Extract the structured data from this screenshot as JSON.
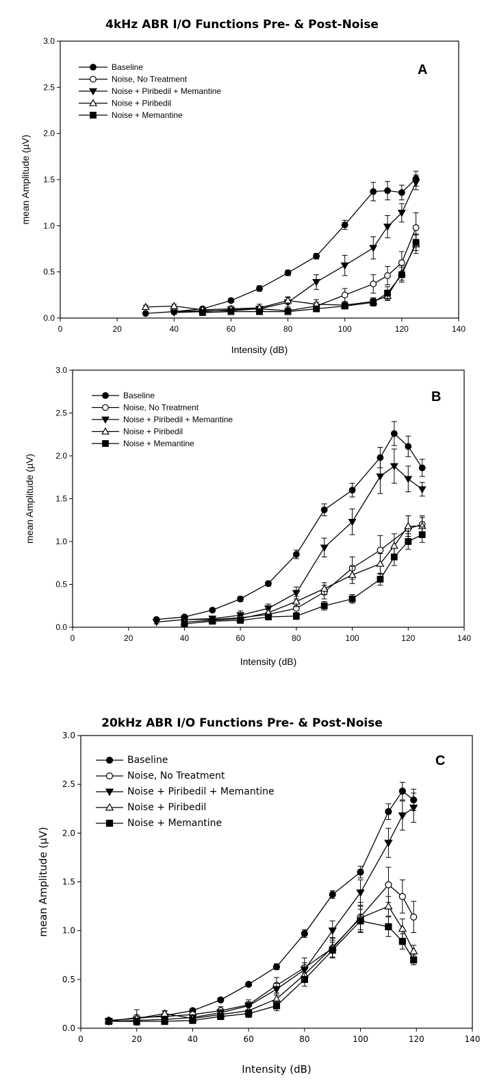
{
  "header": {
    "title_top": "4kHz ABR I/O Functions Pre- & Post-Noise",
    "title_c": "20kHz ABR I/O Functions Pre- & Post-Noise"
  },
  "chart_data": [
    {
      "type": "line",
      "panel": "A",
      "xlabel": "Intensity (dB)",
      "ylabel": "mean Amplitude (µV)",
      "xlim": [
        0,
        140
      ],
      "ylim": [
        0,
        3.0
      ],
      "xticks": [
        0,
        20,
        40,
        60,
        80,
        100,
        120,
        140
      ],
      "yticks": [
        0.0,
        0.5,
        1.0,
        1.5,
        2.0,
        2.5,
        3.0
      ],
      "legend": "top-left",
      "series": [
        {
          "name": "Baseline",
          "marker": "circle-filled",
          "x": [
            30,
            40,
            50,
            60,
            70,
            80,
            90,
            100,
            110,
            115,
            120,
            125
          ],
          "y": [
            0.05,
            0.07,
            0.1,
            0.19,
            0.32,
            0.49,
            0.67,
            1.01,
            1.37,
            1.38,
            1.36,
            1.51
          ],
          "err": [
            0.01,
            0.01,
            0.02,
            0.02,
            0.03,
            0.03,
            0.03,
            0.05,
            0.1,
            0.1,
            0.08,
            0.08
          ]
        },
        {
          "name": "Noise, No Treatment",
          "marker": "circle-open",
          "x": [
            40,
            50,
            60,
            70,
            80,
            90,
            100,
            110,
            115,
            120,
            125
          ],
          "y": [
            0.07,
            0.08,
            0.08,
            0.1,
            0.08,
            0.13,
            0.25,
            0.37,
            0.46,
            0.6,
            0.98
          ],
          "err": [
            0.02,
            0.02,
            0.02,
            0.03,
            0.02,
            0.04,
            0.07,
            0.1,
            0.1,
            0.12,
            0.16
          ]
        },
        {
          "name": "Noise + Piribedil + Memantine",
          "marker": "triangle-down-filled",
          "x": [
            40,
            50,
            60,
            70,
            80,
            90,
            100,
            110,
            115,
            120,
            125
          ],
          "y": [
            0.06,
            0.07,
            0.09,
            0.1,
            0.17,
            0.39,
            0.57,
            0.76,
            0.99,
            1.14,
            1.47
          ],
          "err": [
            0.02,
            0.02,
            0.02,
            0.03,
            0.05,
            0.08,
            0.11,
            0.12,
            0.12,
            0.1,
            0.08
          ]
        },
        {
          "name": "Noise + Piribedil",
          "marker": "triangle-up-open",
          "x": [
            30,
            40,
            50,
            60,
            70,
            80,
            90,
            100,
            110,
            115,
            120,
            125
          ],
          "y": [
            0.12,
            0.13,
            0.09,
            0.1,
            0.11,
            0.19,
            0.15,
            0.14,
            0.18,
            0.24,
            0.49,
            0.8
          ],
          "err": [
            0.02,
            0.02,
            0.03,
            0.03,
            0.04,
            0.04,
            0.05,
            0.03,
            0.04,
            0.05,
            0.08,
            0.1
          ]
        },
        {
          "name": "Noise + Memantine",
          "marker": "square-filled",
          "x": [
            50,
            60,
            70,
            80,
            90,
            100,
            110,
            115,
            120,
            125
          ],
          "y": [
            0.06,
            0.07,
            0.07,
            0.07,
            0.1,
            0.13,
            0.17,
            0.27,
            0.47,
            0.82
          ],
          "err": [
            0.02,
            0.02,
            0.02,
            0.02,
            0.03,
            0.02,
            0.04,
            0.07,
            0.08,
            0.09
          ]
        }
      ]
    },
    {
      "type": "line",
      "panel": "B",
      "xlabel": "Intensity (dB)",
      "ylabel": "mean Amplitude (µV)",
      "xlim": [
        0,
        140
      ],
      "ylim": [
        0,
        3.0
      ],
      "xticks": [
        0,
        20,
        40,
        60,
        80,
        100,
        120,
        140
      ],
      "yticks": [
        0.0,
        0.5,
        1.0,
        1.5,
        2.0,
        2.5,
        3.0
      ],
      "legend": "top-left",
      "series": [
        {
          "name": "Baseline",
          "marker": "circle-filled",
          "x": [
            30,
            40,
            50,
            60,
            70,
            80,
            90,
            100,
            110,
            115,
            120,
            125
          ],
          "y": [
            0.09,
            0.12,
            0.2,
            0.33,
            0.51,
            0.85,
            1.37,
            1.6,
            1.98,
            2.26,
            2.11,
            1.86
          ],
          "err": [
            0.02,
            0.02,
            0.02,
            0.03,
            0.03,
            0.05,
            0.07,
            0.08,
            0.12,
            0.14,
            0.12,
            0.1
          ]
        },
        {
          "name": "Noise, No Treatment",
          "marker": "circle-open",
          "x": [
            40,
            50,
            60,
            70,
            80,
            90,
            100,
            110,
            120,
            125
          ],
          "y": [
            0.09,
            0.09,
            0.11,
            0.15,
            0.22,
            0.41,
            0.69,
            0.9,
            1.15,
            1.2
          ],
          "err": [
            0.03,
            0.03,
            0.03,
            0.05,
            0.07,
            0.08,
            0.13,
            0.17,
            0.15,
            0.1
          ]
        },
        {
          "name": "Noise + Piribedil + Memantine",
          "marker": "triangle-down-filled",
          "x": [
            30,
            40,
            50,
            60,
            70,
            80,
            90,
            100,
            110,
            115,
            120,
            125
          ],
          "y": [
            0.06,
            0.09,
            0.1,
            0.14,
            0.22,
            0.4,
            0.93,
            1.23,
            1.76,
            1.88,
            1.73,
            1.61
          ],
          "err": [
            0.02,
            0.03,
            0.03,
            0.05,
            0.05,
            0.07,
            0.11,
            0.15,
            0.2,
            0.2,
            0.15,
            0.08
          ]
        },
        {
          "name": "Noise + Piribedil",
          "marker": "triangle-up-open",
          "x": [
            40,
            50,
            60,
            70,
            80,
            90,
            100,
            110,
            115,
            120,
            125
          ],
          "y": [
            0.06,
            0.08,
            0.1,
            0.17,
            0.3,
            0.45,
            0.61,
            0.74,
            0.95,
            1.18,
            1.18
          ],
          "err": [
            0.02,
            0.02,
            0.03,
            0.05,
            0.06,
            0.07,
            0.1,
            0.12,
            0.14,
            0.12,
            0.1
          ]
        },
        {
          "name": "Noise + Memantine",
          "marker": "square-filled",
          "x": [
            40,
            50,
            60,
            70,
            80,
            90,
            100,
            110,
            115,
            120,
            125
          ],
          "y": [
            0.04,
            0.07,
            0.08,
            0.12,
            0.13,
            0.25,
            0.33,
            0.56,
            0.82,
            1.0,
            1.08
          ],
          "err": [
            0.01,
            0.02,
            0.02,
            0.03,
            0.04,
            0.05,
            0.05,
            0.07,
            0.1,
            0.09,
            0.09
          ]
        }
      ]
    },
    {
      "type": "line",
      "panel": "C",
      "xlabel": "Intensity (dB)",
      "ylabel": "mean Amplitude (µV)",
      "xlim": [
        0,
        140
      ],
      "ylim": [
        0,
        3.0
      ],
      "xticks": [
        0,
        20,
        40,
        60,
        80,
        100,
        120,
        140
      ],
      "yticks": [
        0.0,
        0.5,
        1.0,
        1.5,
        2.0,
        2.5,
        3.0
      ],
      "legend": "top-left",
      "series": [
        {
          "name": "Baseline",
          "marker": "circle-filled",
          "x": [
            10,
            20,
            30,
            40,
            50,
            60,
            70,
            80,
            90,
            100,
            110,
            115,
            119
          ],
          "y": [
            0.08,
            0.1,
            0.13,
            0.18,
            0.29,
            0.45,
            0.63,
            0.97,
            1.37,
            1.6,
            2.22,
            2.43,
            2.34
          ],
          "err": [
            0.02,
            0.02,
            0.02,
            0.02,
            0.02,
            0.02,
            0.03,
            0.04,
            0.04,
            0.06,
            0.08,
            0.09,
            0.11
          ]
        },
        {
          "name": "Noise, No Treatment",
          "marker": "circle-open",
          "x": [
            10,
            20,
            30,
            40,
            50,
            60,
            70,
            80,
            90,
            100,
            110,
            115,
            119
          ],
          "y": [
            0.07,
            0.11,
            0.12,
            0.14,
            0.18,
            0.24,
            0.44,
            0.62,
            0.82,
            1.14,
            1.47,
            1.35,
            1.14
          ],
          "err": [
            0.02,
            0.08,
            0.05,
            0.04,
            0.04,
            0.05,
            0.08,
            0.1,
            0.1,
            0.15,
            0.18,
            0.17,
            0.16
          ]
        },
        {
          "name": "Noise + Piribedil + Memantine",
          "marker": "triangle-down-filled",
          "x": [
            10,
            20,
            30,
            40,
            50,
            60,
            70,
            80,
            90,
            100,
            110,
            115,
            119
          ],
          "y": [
            0.07,
            0.08,
            0.09,
            0.11,
            0.16,
            0.23,
            0.4,
            0.6,
            1.0,
            1.39,
            1.9,
            2.18,
            2.26
          ],
          "err": [
            0.02,
            0.02,
            0.02,
            0.02,
            0.03,
            0.04,
            0.06,
            0.07,
            0.1,
            0.13,
            0.15,
            0.15,
            0.15
          ]
        },
        {
          "name": "Noise + Piribedil",
          "marker": "triangle-up-open",
          "x": [
            10,
            20,
            30,
            40,
            50,
            60,
            70,
            80,
            90,
            100,
            110,
            115,
            119
          ],
          "y": [
            0.08,
            0.1,
            0.15,
            0.1,
            0.14,
            0.18,
            0.3,
            0.55,
            0.83,
            1.13,
            1.25,
            1.02,
            0.79
          ],
          "err": [
            0.02,
            0.02,
            0.03,
            0.02,
            0.03,
            0.04,
            0.06,
            0.08,
            0.1,
            0.12,
            0.1,
            0.1,
            0.06
          ]
        },
        {
          "name": "Noise + Memantine",
          "marker": "square-filled",
          "x": [
            10,
            20,
            30,
            40,
            50,
            60,
            70,
            80,
            90,
            100,
            110,
            115,
            119
          ],
          "y": [
            0.07,
            0.07,
            0.07,
            0.08,
            0.12,
            0.15,
            0.23,
            0.5,
            0.8,
            1.1,
            1.04,
            0.89,
            0.7
          ],
          "err": [
            0.02,
            0.02,
            0.02,
            0.02,
            0.03,
            0.04,
            0.05,
            0.07,
            0.08,
            0.12,
            0.1,
            0.08,
            0.05
          ]
        }
      ]
    }
  ]
}
